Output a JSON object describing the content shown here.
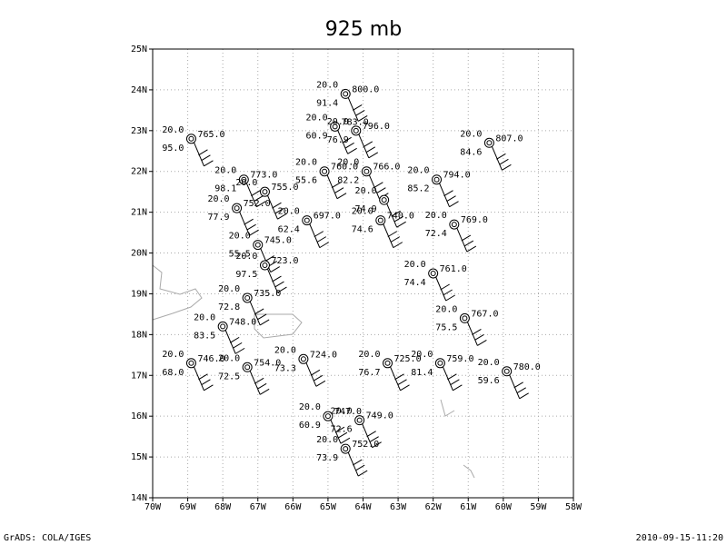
{
  "title": "925 mb",
  "footer_left": "GrADS: COLA/IGES",
  "footer_right": "2010-09-15-11:20",
  "lon_range": [
    -70,
    -58
  ],
  "lat_range": [
    14,
    25
  ],
  "lon_ticks": [
    {
      "value": -70,
      "label": "70W"
    },
    {
      "value": -69,
      "label": "69W"
    },
    {
      "value": -68,
      "label": "68W"
    },
    {
      "value": -67,
      "label": "67W"
    },
    {
      "value": -66,
      "label": "66W"
    },
    {
      "value": -65,
      "label": "65W"
    },
    {
      "value": -64,
      "label": "64W"
    },
    {
      "value": -63,
      "label": "63W"
    },
    {
      "value": -62,
      "label": "62W"
    },
    {
      "value": -61,
      "label": "61W"
    },
    {
      "value": -60,
      "label": "60W"
    },
    {
      "value": -59,
      "label": "59W"
    },
    {
      "value": -58,
      "label": "58W"
    }
  ],
  "lat_ticks": [
    {
      "value": 14,
      "label": "14N"
    },
    {
      "value": 15,
      "label": "15N"
    },
    {
      "value": 16,
      "label": "16N"
    },
    {
      "value": 17,
      "label": "17N"
    },
    {
      "value": 18,
      "label": "18N"
    },
    {
      "value": 19,
      "label": "19N"
    },
    {
      "value": 20,
      "label": "20N"
    },
    {
      "value": 21,
      "label": "21N"
    },
    {
      "value": 22,
      "label": "22N"
    },
    {
      "value": 23,
      "label": "23N"
    },
    {
      "value": 24,
      "label": "24N"
    },
    {
      "value": 25,
      "label": "25N"
    }
  ],
  "stations": [
    {
      "lon": -64.5,
      "lat": 23.9,
      "temp": "20.0",
      "height": "800.0",
      "rh": "91.4"
    },
    {
      "lon": -68.9,
      "lat": 22.8,
      "temp": "20.0",
      "height": "765.0",
      "rh": "95.0"
    },
    {
      "lon": -64.8,
      "lat": 23.1,
      "temp": "20.0",
      "height": "783.0",
      "rh": "60.9"
    },
    {
      "lon": -64.2,
      "lat": 23.0,
      "temp": "20.0",
      "height": "796.0",
      "rh": "76.9"
    },
    {
      "lon": -60.4,
      "lat": 22.7,
      "temp": "20.0",
      "height": "807.0",
      "rh": "84.6"
    },
    {
      "lon": -65.1,
      "lat": 22.0,
      "temp": "20.0",
      "height": "760.0",
      "rh": "55.6"
    },
    {
      "lon": -63.9,
      "lat": 22.0,
      "temp": "20.0",
      "height": "766.0",
      "rh": "82.2"
    },
    {
      "lon": -61.9,
      "lat": 21.8,
      "temp": "20.0",
      "height": "794.0",
      "rh": "85.2"
    },
    {
      "lon": -67.4,
      "lat": 21.8,
      "temp": "20.0",
      "height": "773.0",
      "rh": "98.1"
    },
    {
      "lon": -66.8,
      "lat": 21.5,
      "temp": "20.0",
      "height": "755.0"
    },
    {
      "lon": -67.6,
      "lat": 21.1,
      "temp": "20.0",
      "height": "752.0",
      "rh": "77.9"
    },
    {
      "lon": -63.4,
      "lat": 21.3,
      "temp": "20.0",
      "rh": "74.9"
    },
    {
      "lon": -65.6,
      "lat": 20.8,
      "temp": "20.0",
      "height": "697.0",
      "rh": "62.4"
    },
    {
      "lon": -63.5,
      "lat": 20.8,
      "temp": "20.0",
      "height": "740.0",
      "rh": "74.6"
    },
    {
      "lon": -61.4,
      "lat": 20.7,
      "temp": "20.0",
      "height": "769.0",
      "rh": "72.4"
    },
    {
      "lon": -67.0,
      "lat": 20.2,
      "temp": "20.0",
      "height": "745.0",
      "rh": "55.5"
    },
    {
      "lon": -66.8,
      "lat": 19.7,
      "temp": "20.0",
      "height": "723.0",
      "rh": "97.5"
    },
    {
      "lon": -62.0,
      "lat": 19.5,
      "temp": "20.0",
      "height": "761.0",
      "rh": "74.4"
    },
    {
      "lon": -67.3,
      "lat": 18.9,
      "temp": "20.0",
      "height": "735.0",
      "rh": "72.8"
    },
    {
      "lon": -61.1,
      "lat": 18.4,
      "temp": "20.0",
      "height": "767.0",
      "rh": "75.5"
    },
    {
      "lon": -68.0,
      "lat": 18.2,
      "temp": "20.0",
      "height": "748.0",
      "rh": "83.5"
    },
    {
      "lon": -68.9,
      "lat": 17.3,
      "temp": "20.0",
      "height": "746.0",
      "rh": "68.0"
    },
    {
      "lon": -67.3,
      "lat": 17.2,
      "temp": "20.0",
      "height": "754.0",
      "rh": "72.5"
    },
    {
      "lon": -65.7,
      "lat": 17.4,
      "temp": "20.0",
      "height": "724.0",
      "rh": "73.3"
    },
    {
      "lon": -63.3,
      "lat": 17.3,
      "temp": "20.0",
      "height": "725.0",
      "rh": "76.7"
    },
    {
      "lon": -61.8,
      "lat": 17.3,
      "temp": "20.0",
      "height": "759.0",
      "rh": "81.4"
    },
    {
      "lon": -59.9,
      "lat": 17.1,
      "temp": "20.0",
      "height": "780.0",
      "rh": "59.6"
    },
    {
      "lon": -65.0,
      "lat": 16.0,
      "temp": "20.0",
      "height": "747.0",
      "rh": "60.9"
    },
    {
      "lon": -64.1,
      "lat": 15.9,
      "temp": "20.0",
      "height": "749.0",
      "rh": "72.6"
    },
    {
      "lon": -64.5,
      "lat": 15.2,
      "temp": "20.0",
      "height": "752.0",
      "rh": "73.9"
    }
  ]
}
